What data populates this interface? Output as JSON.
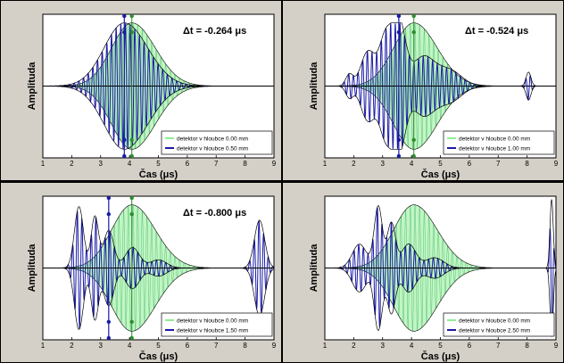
{
  "colors": {
    "reference": "#90ee90",
    "reference_edge": "#2e8b2e",
    "detector": "#1a1aa6",
    "envelope": "#000000",
    "panel_bg": "#d4d0c8"
  },
  "chart_data": [
    {
      "type": "line",
      "xlabel": "Čas (μs)",
      "ylabel": "Amplituda",
      "dt_label": "Δt = -0.264 μs",
      "xlim": [
        1,
        9
      ],
      "xticks": [
        1,
        2,
        3,
        4,
        5,
        6,
        7,
        8,
        9
      ],
      "legend_loc": "bottom-right",
      "markers": [
        3.82,
        4.08
      ],
      "series": [
        {
          "name": "detektor v hloubce 0.00 mm",
          "color": "#90ee90",
          "shape": "smooth",
          "center": 4.08,
          "amp": 0.88
        },
        {
          "name": "detektor v hloubce 0.50 mm",
          "color": "#1a1aa6",
          "shape": "smooth",
          "center": 3.82,
          "amp": 0.88
        }
      ]
    },
    {
      "type": "line",
      "xlabel": "Čas (μs)",
      "ylabel": "Amplituda",
      "dt_label": "Δt = -0.524 μs",
      "xlim": [
        1,
        9
      ],
      "xticks": [
        1,
        2,
        3,
        4,
        5,
        6,
        7,
        8,
        9
      ],
      "legend_loc": "bottom-right",
      "markers": [
        3.56,
        4.08
      ],
      "series": [
        {
          "name": "detektor v hloubce 0.00 mm",
          "color": "#90ee90",
          "shape": "smooth",
          "center": 4.08,
          "amp": 0.88
        },
        {
          "name": "detektor v hloubce 1.00 mm",
          "color": "#1a1aa6",
          "shape": "bumpy",
          "center": 3.56,
          "amp": 0.88,
          "tail": 8.05
        }
      ]
    },
    {
      "type": "line",
      "xlabel": "Čas (μs)",
      "ylabel": "Amplituda",
      "dt_label": "Δt = -0.800 μs",
      "xlim": [
        1,
        9
      ],
      "xticks": [
        1,
        2,
        3,
        4,
        5,
        6,
        7,
        8,
        9
      ],
      "legend_loc": "bottom-right",
      "markers": [
        3.28,
        4.08
      ],
      "series": [
        {
          "name": "detektor v hloubce 0.00 mm",
          "color": "#90ee90",
          "shape": "smooth",
          "center": 4.08,
          "amp": 0.88
        },
        {
          "name": "detektor v hloubce 1.50 mm",
          "color": "#1a1aa6",
          "shape": "split",
          "center": 3.28,
          "amp": 0.95,
          "tail": 8.5
        }
      ]
    },
    {
      "type": "line",
      "xlabel": "Čas (μs)",
      "ylabel": "Amplituda",
      "dt_label": "",
      "xlim": [
        1,
        9
      ],
      "xticks": [
        1,
        2,
        3,
        4,
        5,
        6,
        7,
        8,
        9
      ],
      "legend_loc": "bottom-right",
      "markers": [],
      "series": [
        {
          "name": "detektor v hloubce 0.00 mm",
          "color": "#90ee90",
          "shape": "smooth",
          "center": 4.08,
          "amp": 0.88
        },
        {
          "name": "detektor v hloubce 2.50 mm",
          "color": "#1a1aa6",
          "shape": "burst",
          "center": 3.1,
          "amp": 0.95,
          "tail": 8.85
        }
      ]
    }
  ]
}
